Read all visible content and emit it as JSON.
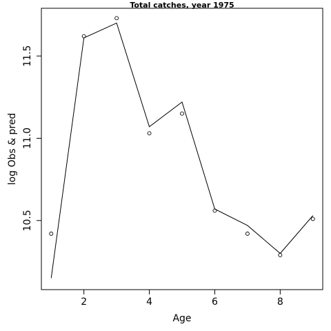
{
  "chart_data": {
    "type": "line",
    "title": "Total catches, year 1975",
    "xlabel": "Age",
    "ylabel": "log Obs & pred",
    "xlim": [
      0.7,
      9.3
    ],
    "ylim": [
      10.08,
      11.79
    ],
    "xticks": [
      2,
      4,
      6,
      8
    ],
    "yticks": [
      10.5,
      11.0,
      11.5
    ],
    "ytick_labels": [
      "10.5",
      "11.0",
      "11.5"
    ],
    "grid": false,
    "series": [
      {
        "style": "points",
        "x": [
          1,
          2,
          3,
          4,
          5,
          6,
          7,
          8,
          9
        ],
        "values": [
          10.42,
          11.62,
          11.73,
          11.03,
          11.15,
          10.56,
          10.42,
          10.29,
          10.51
        ]
      },
      {
        "style": "line",
        "x": [
          1,
          2,
          3,
          4,
          5,
          6,
          7,
          8,
          9
        ],
        "values": [
          10.15,
          11.61,
          11.7,
          11.07,
          11.22,
          10.57,
          10.47,
          10.3,
          10.53
        ]
      }
    ]
  }
}
